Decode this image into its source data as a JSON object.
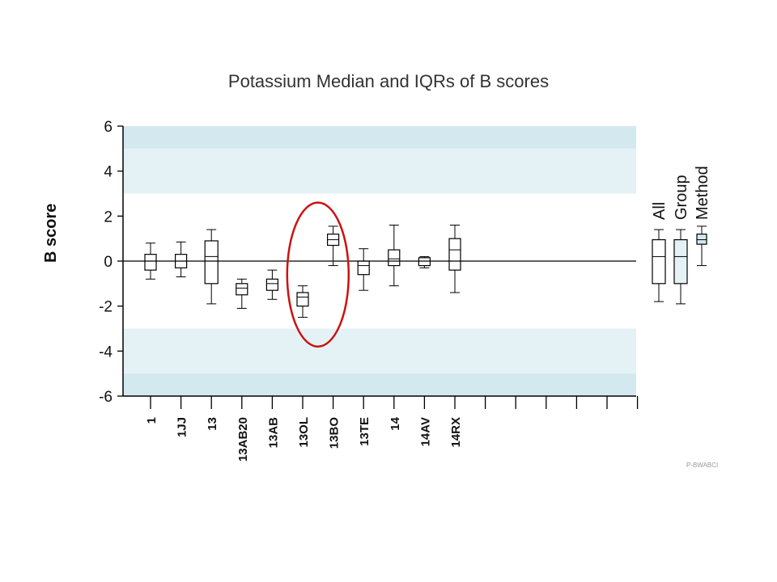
{
  "chart_data": {
    "type": "box",
    "title": "Potassium Median and IQRs of B scores",
    "ylabel": "B score",
    "xlabel": "",
    "ylim": [
      -6,
      6
    ],
    "yticks": [
      "-6",
      "-4",
      "-2",
      "0",
      "2",
      "4",
      "6"
    ],
    "bands": [
      {
        "from": 5,
        "to": 6,
        "color": "#d3e9ef"
      },
      {
        "from": 3,
        "to": 5,
        "color": "#e4f2f6"
      },
      {
        "from": -5,
        "to": -3,
        "color": "#e4f2f6"
      },
      {
        "from": -6,
        "to": -5,
        "color": "#d3e9ef"
      }
    ],
    "categories": [
      "1",
      "1JJ",
      "13",
      "13AB20",
      "13AB",
      "13OL",
      "13BO",
      "13TE",
      "14",
      "14AV",
      "14RX",
      "",
      "",
      "",
      "",
      "",
      ""
    ],
    "boxes": [
      {
        "label": "1",
        "whisker_low": -0.8,
        "q1": -0.4,
        "median": 0.0,
        "q3": 0.3,
        "whisker_high": 0.8
      },
      {
        "label": "1JJ",
        "whisker_low": -0.7,
        "q1": -0.3,
        "median": 0.0,
        "q3": 0.3,
        "whisker_high": 0.85
      },
      {
        "label": "13",
        "whisker_low": -1.9,
        "q1": -1.0,
        "median": 0.2,
        "q3": 0.9,
        "whisker_high": 1.4
      },
      {
        "label": "13AB20",
        "whisker_low": -2.1,
        "q1": -1.5,
        "median": -1.2,
        "q3": -1.0,
        "whisker_high": -0.8
      },
      {
        "label": "13AB",
        "whisker_low": -1.7,
        "q1": -1.3,
        "median": -1.0,
        "q3": -0.8,
        "whisker_high": -0.4
      },
      {
        "label": "13OL",
        "whisker_low": -2.5,
        "q1": -2.0,
        "median": -1.6,
        "q3": -1.4,
        "whisker_high": -1.1
      },
      {
        "label": "13BO",
        "whisker_low": -0.2,
        "q1": 0.7,
        "median": 0.95,
        "q3": 1.2,
        "whisker_high": 1.55
      },
      {
        "label": "13TE",
        "whisker_low": -1.3,
        "q1": -0.6,
        "median": -0.2,
        "q3": 0.0,
        "whisker_high": 0.55
      },
      {
        "label": "14",
        "whisker_low": -1.1,
        "q1": -0.2,
        "median": 0.1,
        "q3": 0.5,
        "whisker_high": 1.6
      },
      {
        "label": "14AV",
        "whisker_low": -0.3,
        "q1": -0.2,
        "median": 0.0,
        "q3": 0.15,
        "whisker_high": 0.2
      },
      {
        "label": "14RX",
        "whisker_low": -1.4,
        "q1": -0.4,
        "median": 0.5,
        "q3": 1.0,
        "whisker_high": 1.6
      }
    ],
    "summary_boxes": [
      {
        "label": "All",
        "whisker_low": -1.8,
        "q1": -1.0,
        "median": 0.2,
        "q3": 0.95,
        "whisker_high": 1.4,
        "fill": "#ffffff"
      },
      {
        "label": "Group",
        "whisker_low": -1.9,
        "q1": -1.0,
        "median": 0.2,
        "q3": 0.95,
        "whisker_high": 1.4,
        "fill": "#e4f2f6"
      },
      {
        "label": "Method",
        "whisker_low": -0.2,
        "q1": 0.75,
        "median": 0.95,
        "q3": 1.2,
        "whisker_high": 1.55,
        "fill": "#d3e9ef"
      }
    ],
    "annotation": {
      "type": "ellipse",
      "color": "#cc1111",
      "y_from": -3.8,
      "y_to": 2.6,
      "around": [
        "13OL",
        "13BO"
      ]
    },
    "corner_text": "P-BWABCI",
    "grid": false,
    "legend": "none"
  }
}
